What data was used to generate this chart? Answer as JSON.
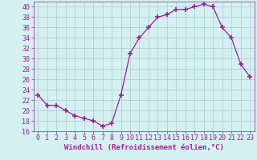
{
  "x": [
    0,
    1,
    2,
    3,
    4,
    5,
    6,
    7,
    8,
    9,
    10,
    11,
    12,
    13,
    14,
    15,
    16,
    17,
    18,
    19,
    20,
    21,
    22,
    23
  ],
  "y": [
    23,
    21,
    21,
    20,
    19,
    18.5,
    18,
    17,
    17.5,
    23,
    31,
    34,
    36,
    38,
    38.5,
    39.5,
    39.5,
    40,
    40.5,
    40,
    36,
    34,
    29,
    26.5
  ],
  "line_color": "#9b1f9b",
  "marker": "+",
  "marker_size": 4,
  "marker_linewidth": 1.2,
  "bg_color": "#d4f0f0",
  "grid_color": "#aacccc",
  "xlabel": "Windchill (Refroidissement éolien,°C)",
  "xlabel_color": "#9b1f9b",
  "tick_color": "#9b1f9b",
  "ylim": [
    16,
    41
  ],
  "xlim": [
    -0.5,
    23.5
  ],
  "yticks": [
    16,
    18,
    20,
    22,
    24,
    26,
    28,
    30,
    32,
    34,
    36,
    38,
    40
  ],
  "xticks": [
    0,
    1,
    2,
    3,
    4,
    5,
    6,
    7,
    8,
    9,
    10,
    11,
    12,
    13,
    14,
    15,
    16,
    17,
    18,
    19,
    20,
    21,
    22,
    23
  ],
  "xlabel_fontsize": 6.5,
  "tick_fontsize": 6.0,
  "linewidth": 0.9
}
